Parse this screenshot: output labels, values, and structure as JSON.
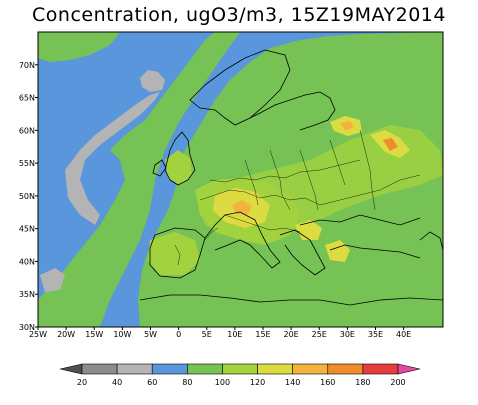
{
  "title": "Concentration, ugO3/m3, 15Z19MAY2014",
  "map": {
    "lon_range": [
      -25,
      47
    ],
    "lat_range": [
      30,
      75
    ],
    "lat_ticks": [
      {
        "value": 70,
        "label": "70N"
      },
      {
        "value": 65,
        "label": "65N"
      },
      {
        "value": 60,
        "label": "60N"
      },
      {
        "value": 55,
        "label": "55N"
      },
      {
        "value": 50,
        "label": "50N"
      },
      {
        "value": 45,
        "label": "45N"
      },
      {
        "value": 40,
        "label": "40N"
      },
      {
        "value": 35,
        "label": "35N"
      },
      {
        "value": 30,
        "label": "30N"
      }
    ],
    "lon_ticks": [
      {
        "value": -25,
        "label": "25W"
      },
      {
        "value": -20,
        "label": "20W"
      },
      {
        "value": -15,
        "label": "15W"
      },
      {
        "value": -10,
        "label": "10W"
      },
      {
        "value": -5,
        "label": "5W"
      },
      {
        "value": 0,
        "label": "0"
      },
      {
        "value": 5,
        "label": "5E"
      },
      {
        "value": 10,
        "label": "10E"
      },
      {
        "value": 15,
        "label": "15E"
      },
      {
        "value": 20,
        "label": "20E"
      },
      {
        "value": 25,
        "label": "25E"
      },
      {
        "value": 30,
        "label": "30E"
      },
      {
        "value": 35,
        "label": "35E"
      },
      {
        "value": 40,
        "label": "40E"
      }
    ]
  },
  "colorbar": {
    "labels": [
      "20",
      "40",
      "60",
      "80",
      "100",
      "120",
      "140",
      "160",
      "180",
      "200"
    ],
    "colors": [
      "#505050",
      "#8c8c8c",
      "#b4b4b4",
      "#5a96dc",
      "#76c254",
      "#a2d23e",
      "#dcdc42",
      "#f0b43c",
      "#f08c2c",
      "#e63c3c",
      "#e646a0"
    ]
  },
  "colors": {
    "ocean": "#5a96dc",
    "low_concentration": "#b4b4b4",
    "land_base": "#76c254",
    "elevated": "#a2d23e",
    "high": "#dcdc42",
    "peak": "#f0b43c"
  }
}
